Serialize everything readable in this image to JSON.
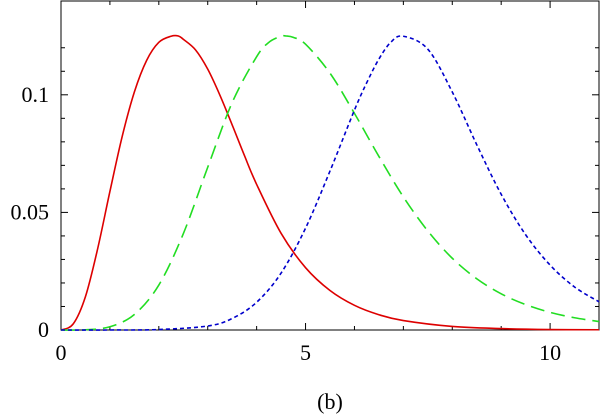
{
  "chart_data": {
    "type": "line",
    "title": "",
    "caption": "(b)",
    "xlabel": "",
    "ylabel": "",
    "xlim": [
      0,
      11
    ],
    "ylim": [
      0,
      0.125
    ],
    "x_ticks": [
      {
        "value": 0,
        "label": "0"
      },
      {
        "value": 5,
        "label": "5"
      },
      {
        "value": 10,
        "label": "10"
      }
    ],
    "y_ticks": [
      {
        "value": 0,
        "label": "0"
      },
      {
        "value": 0.05,
        "label": "0.05"
      },
      {
        "value": 0.1,
        "label": "0.1"
      }
    ],
    "x_minor_step": 1,
    "y_minor_step": 0.01,
    "grid": false,
    "series": [
      {
        "color": "#dd0000",
        "dash": "solid",
        "x": [
          0,
          0.25,
          0.5,
          0.75,
          1.0,
          1.25,
          1.5,
          1.75,
          2.0,
          2.25,
          2.4,
          2.5,
          2.75,
          3.0,
          3.25,
          3.5,
          3.75,
          4.0,
          4.5,
          5.0,
          5.5,
          6.0,
          6.5,
          7.0,
          8.0,
          9.0,
          10.0,
          11.0
        ],
        "y": [
          0,
          0.0026,
          0.0142,
          0.0346,
          0.0589,
          0.0822,
          0.1012,
          0.1146,
          0.1223,
          0.1249,
          0.125,
          0.1236,
          0.1191,
          0.1109,
          0.0998,
          0.0872,
          0.0742,
          0.0619,
          0.0411,
          0.0265,
          0.0168,
          0.0105,
          0.0065,
          0.004,
          0.0015,
          0.0006,
          0.0002,
          0.0001
        ]
      },
      {
        "color": "#22dd22",
        "dash": "long-dash",
        "x": [
          0,
          0.5,
          1.0,
          1.5,
          2.0,
          2.5,
          3.0,
          3.5,
          4.0,
          4.25,
          4.5,
          4.6,
          4.75,
          5.0,
          5.5,
          6.0,
          6.5,
          7.0,
          7.5,
          8.0,
          8.5,
          9.0,
          9.5,
          10.0,
          10.5,
          11.0
        ],
        "y": [
          0,
          0.0001,
          0.0014,
          0.0066,
          0.0191,
          0.0409,
          0.0692,
          0.0967,
          0.1162,
          0.1223,
          0.1249,
          0.125,
          0.1244,
          0.1215,
          0.1092,
          0.0921,
          0.0738,
          0.0566,
          0.0421,
          0.0305,
          0.0218,
          0.0154,
          0.0108,
          0.0075,
          0.0052,
          0.0036
        ]
      },
      {
        "color": "#0000cc",
        "dash": "short-dash",
        "x": [
          0,
          1.0,
          2.0,
          3.0,
          3.5,
          4.0,
          4.5,
          5.0,
          5.5,
          6.0,
          6.25,
          6.5,
          6.75,
          7.0,
          7.5,
          8.0,
          8.5,
          9.0,
          9.5,
          10.0,
          10.5,
          11.0
        ],
        "y": [
          0,
          0.0,
          0.0002,
          0.0017,
          0.0049,
          0.0118,
          0.0242,
          0.0433,
          0.0676,
          0.0935,
          0.1051,
          0.1152,
          0.1225,
          0.1249,
          0.1194,
          0.1012,
          0.0788,
          0.0577,
          0.0405,
          0.0276,
          0.0183,
          0.012
        ]
      }
    ]
  }
}
